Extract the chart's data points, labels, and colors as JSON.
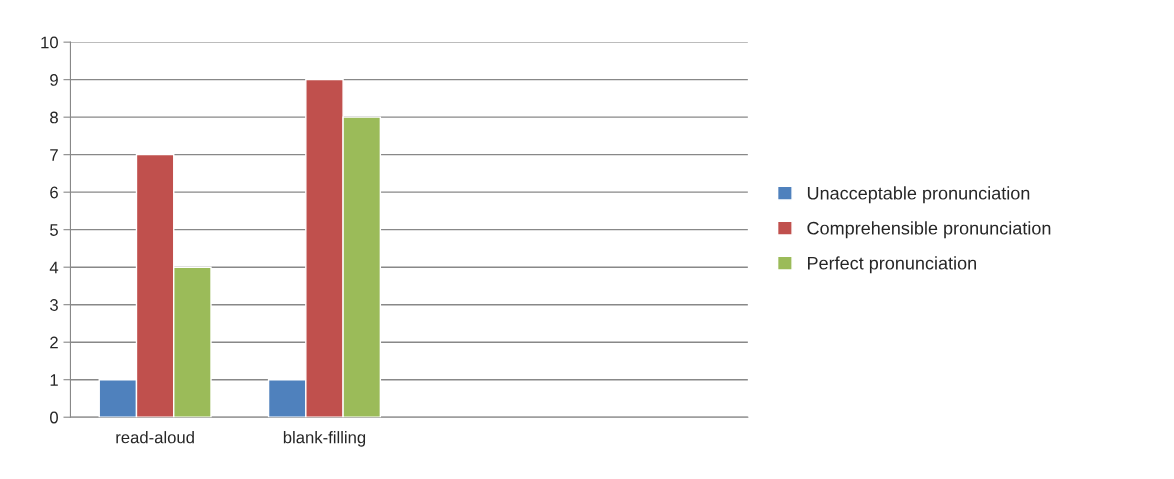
{
  "chart_data": {
    "type": "bar",
    "categories": [
      "read-aloud",
      "blank-filling",
      null,
      null
    ],
    "series": [
      {
        "name": "Unacceptable pronunciation",
        "color": "#4f81bd",
        "values": [
          1,
          1,
          null,
          null
        ]
      },
      {
        "name": "Comprehensible pronunciation",
        "color": "#c0504d",
        "values": [
          7,
          9,
          null,
          null
        ]
      },
      {
        "name": "Perfect pronunciation",
        "color": "#9bbb59",
        "values": [
          4,
          8,
          null,
          null
        ]
      }
    ],
    "ylim": [
      0,
      10
    ],
    "yticks": [
      0,
      1,
      2,
      3,
      4,
      5,
      6,
      7,
      8,
      9,
      10
    ],
    "grid": "y",
    "legend": "right"
  }
}
